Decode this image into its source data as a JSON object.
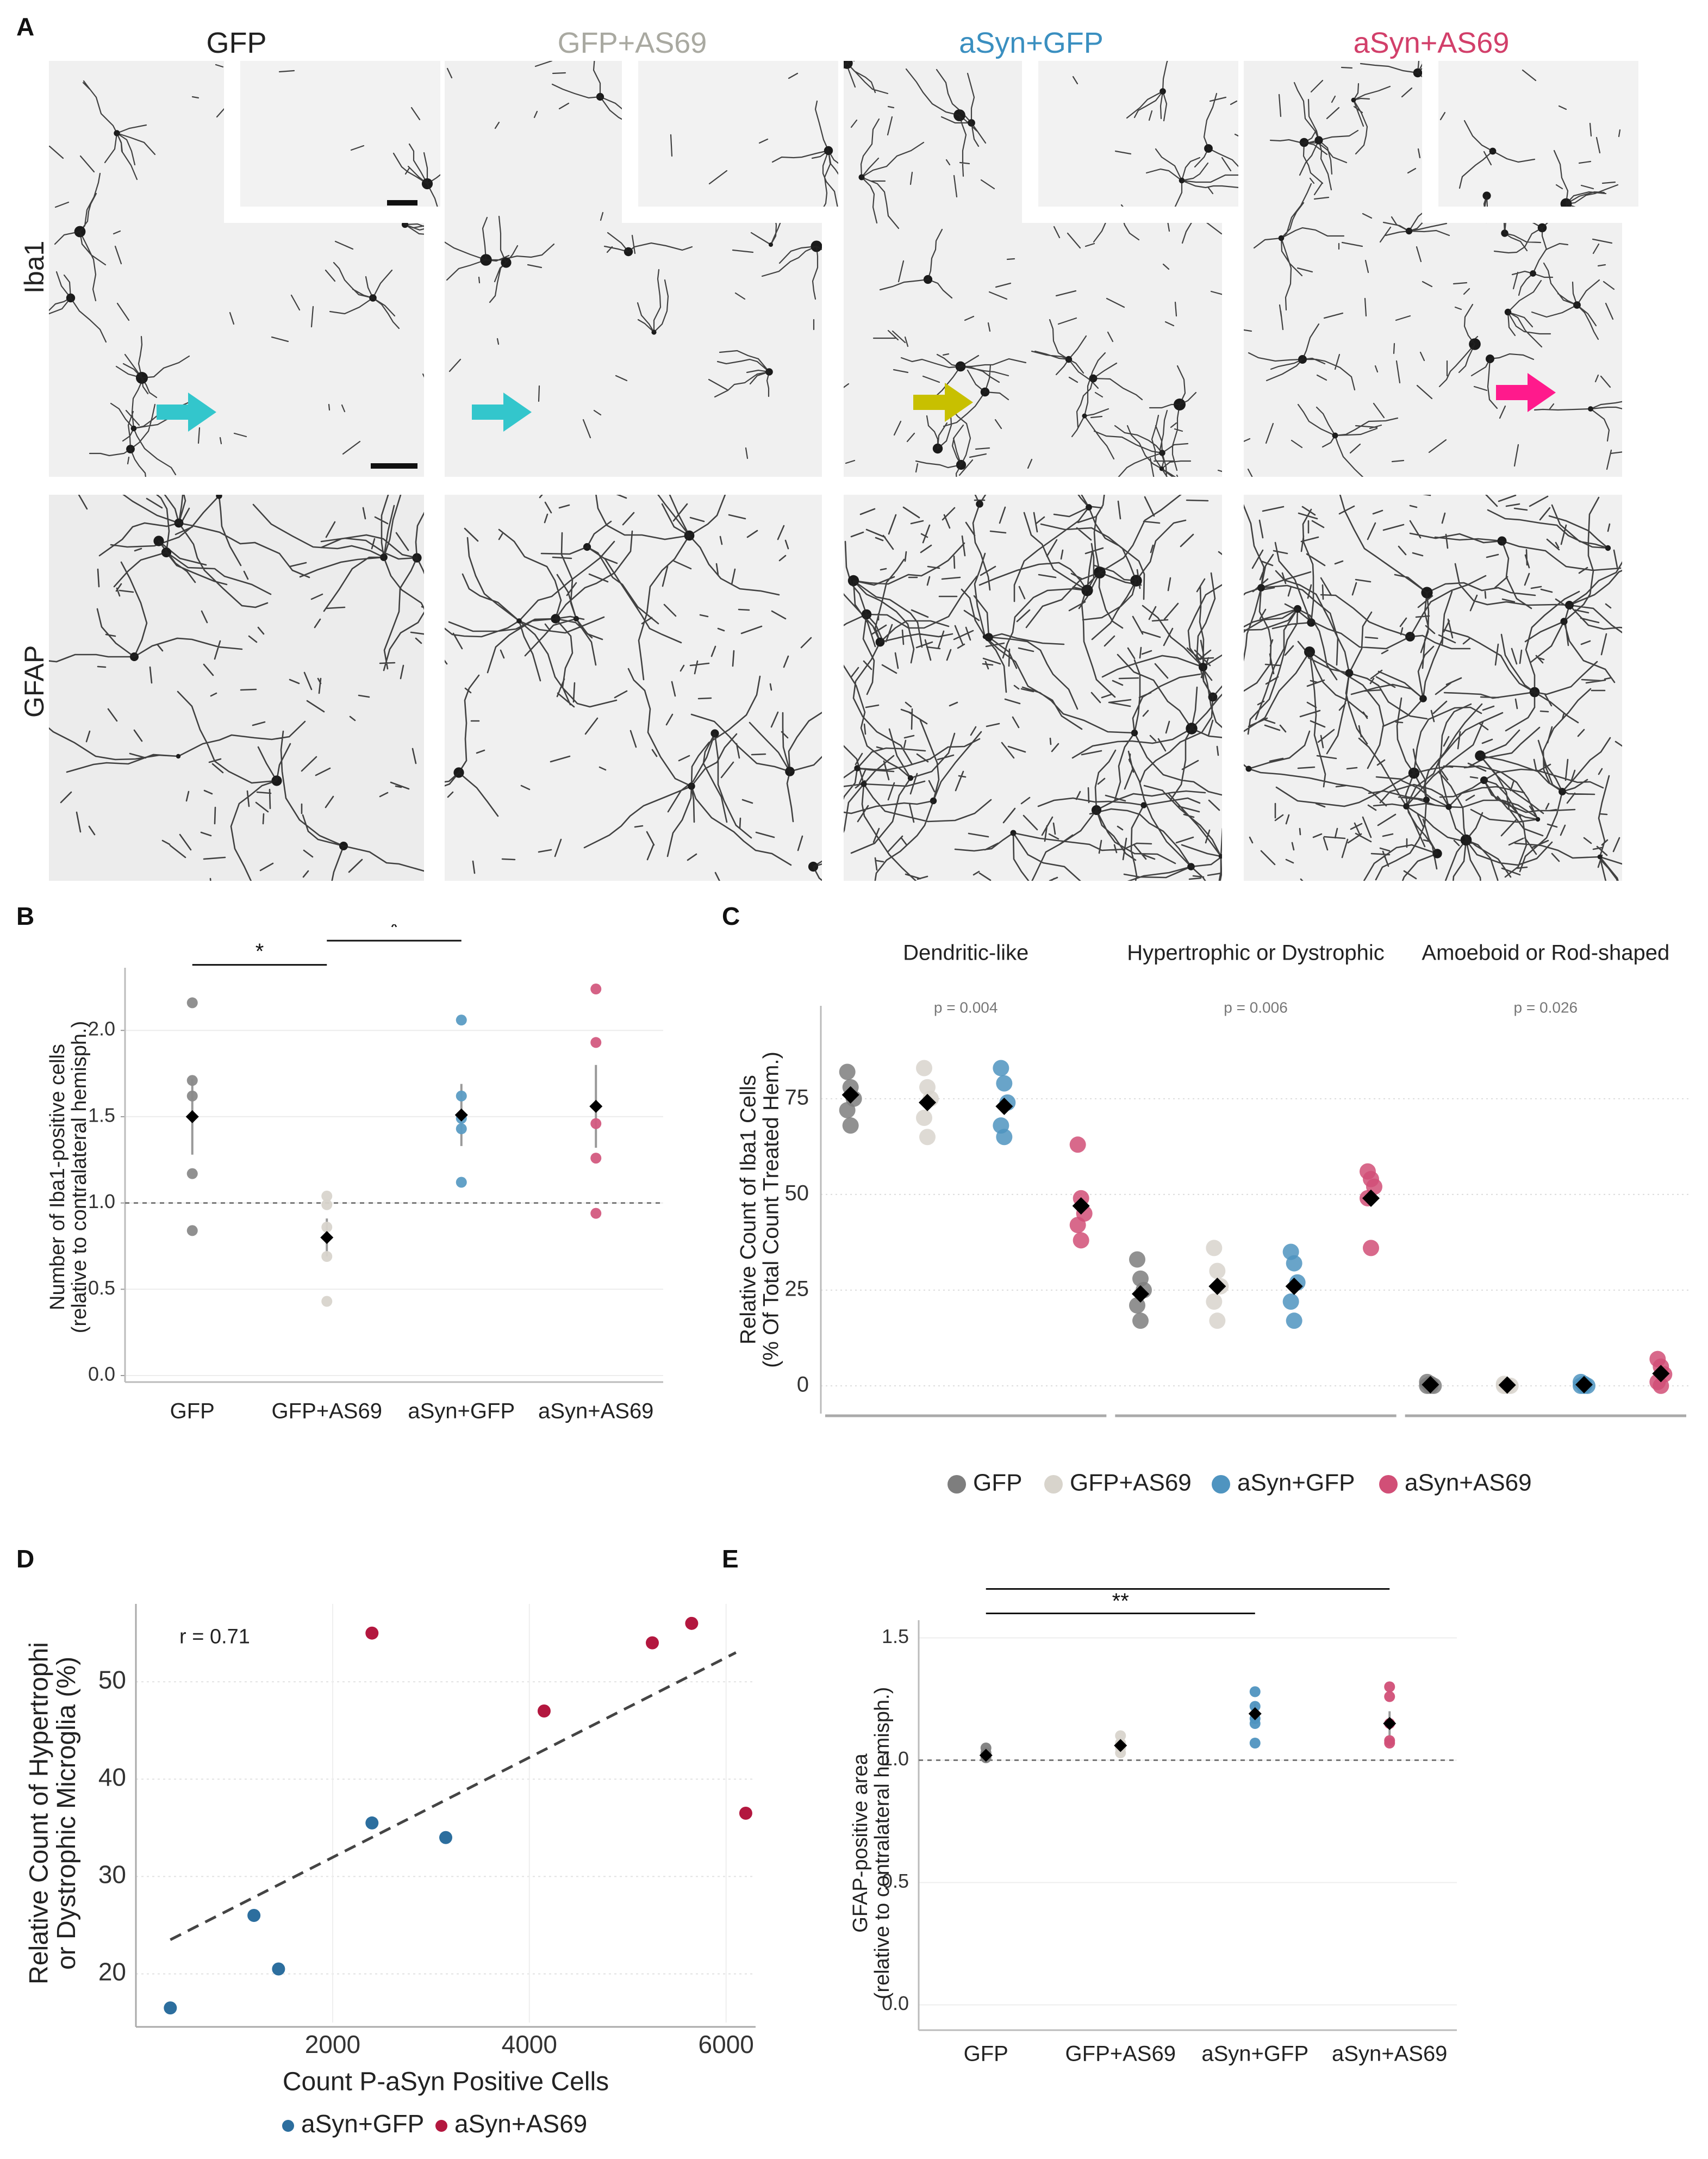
{
  "panel_letters": {
    "a": "A",
    "b": "B",
    "c": "C",
    "d": "D",
    "e": "E"
  },
  "panel_a": {
    "columns": [
      {
        "label": "GFP",
        "color": "#222222"
      },
      {
        "label": "GFP+AS69",
        "color": "#a9a9a1"
      },
      {
        "label": "aSyn+GFP",
        "color": "#3a8fc0"
      },
      {
        "label": "aSyn+AS69",
        "color": "#d23f6a"
      }
    ],
    "rows": [
      {
        "label": "Iba1"
      },
      {
        "label": "GFAP"
      }
    ],
    "arrow_colors": [
      "#33c6cc",
      "#33c6cc",
      "#c8c000",
      "#ff1a8c"
    ],
    "icons": {
      "arrow": "arrow-right-icon"
    }
  },
  "chart_data": [
    {
      "id": "B",
      "type": "scatter",
      "xlabel": "",
      "ylabel": "Number of Iba1-positive cells\n(relative to contralateral hemisph.)",
      "categories": [
        "GFP",
        "GFP+AS69",
        "aSyn+GFP",
        "aSyn+AS69"
      ],
      "ylim": [
        0.0,
        2.3
      ],
      "yticks": [
        "0.0",
        "0.5",
        "1.0",
        "1.5",
        "2.0"
      ],
      "reference_line": 1.0,
      "colors": [
        "#8a8a8a",
        "#d8d4cc",
        "#5b9cc4",
        "#d35a7f"
      ],
      "points": [
        [
          2.16,
          1.71,
          1.62,
          1.17,
          0.84
        ],
        [
          1.04,
          0.99,
          0.86,
          0.69,
          0.43
        ],
        [
          2.06,
          1.62,
          1.49,
          1.43,
          1.12
        ],
        [
          2.24,
          1.93,
          1.46,
          1.26,
          0.94
        ]
      ],
      "means": [
        1.5,
        0.8,
        1.51,
        1.56
      ],
      "errors": [
        0.22,
        0.11,
        0.18,
        0.24
      ],
      "significance": [
        {
          "from": 0,
          "to": 1,
          "label": "*"
        },
        {
          "from": 1,
          "to": 2,
          "label": "*"
        },
        {
          "from": 1,
          "to": 3,
          "label": "*"
        }
      ],
      "grid": true
    },
    {
      "id": "C",
      "type": "scatter",
      "ylabel": "Relative Count of Iba1 Cells\n(% Of Total Count Treated Hem.)",
      "facets": [
        "Dendritic-like",
        "Hypertrophic or Dystrophic",
        "Amoeboid or Rod-shaped"
      ],
      "facet_pvalues": [
        "p = 0.004",
        "p = 0.006",
        "p = 0.026"
      ],
      "series_names": [
        "GFP",
        "GFP+AS69",
        "aSyn+GFP",
        "aSyn+AS69"
      ],
      "colors": [
        "#7e7e7e",
        "#d8d4cc",
        "#4f94c0",
        "#d14f77"
      ],
      "ylim": [
        -3,
        95
      ],
      "yticks": [
        "0",
        "25",
        "50",
        "75"
      ],
      "points": [
        [
          [
            82,
            78,
            75,
            72,
            68
          ],
          [
            83,
            78,
            75,
            70,
            65
          ],
          [
            83,
            79,
            74,
            68,
            65
          ],
          [
            63,
            49,
            45,
            42,
            38
          ]
        ],
        [
          [
            33,
            28,
            25,
            21,
            17
          ],
          [
            36,
            30,
            26,
            22,
            17
          ],
          [
            35,
            32,
            27,
            22,
            17
          ],
          [
            56,
            54,
            52,
            49,
            36
          ]
        ],
        [
          [
            1,
            0.5,
            0,
            0,
            0
          ],
          [
            0.5,
            0,
            0,
            0,
            0
          ],
          [
            1,
            0.5,
            0,
            0,
            0
          ],
          [
            7,
            5,
            3,
            1,
            0
          ]
        ]
      ],
      "means": [
        [
          76,
          74,
          73,
          47
        ],
        [
          24,
          26,
          26,
          49
        ],
        [
          0.3,
          0.2,
          0.3,
          3.2
        ]
      ],
      "legend_position": "bottom",
      "grid": true
    },
    {
      "id": "D",
      "type": "scatter",
      "xlabel": "Count P-aSyn Positive Cells",
      "ylabel": "Relative Count of Hypertrophi\nor Dystrophic Microglia (%)",
      "annotation": "r = 0.71",
      "xlim": [
        0,
        6300
      ],
      "ylim": [
        15,
        58
      ],
      "xticks": [
        "2000",
        "4000",
        "6000"
      ],
      "yticks": [
        "20",
        "30",
        "40",
        "50"
      ],
      "series": [
        {
          "name": "aSyn+GFP",
          "color": "#2c6e9e",
          "x": [
            350,
            1200,
            1450,
            2400,
            3150
          ],
          "y": [
            16.5,
            26,
            20.5,
            35.5,
            34
          ]
        },
        {
          "name": "aSyn+AS69",
          "color": "#b3173f",
          "x": [
            2400,
            4150,
            5250,
            5650,
            6200
          ],
          "y": [
            55,
            47,
            54,
            56,
            36.5
          ]
        }
      ],
      "trend_line": {
        "x": [
          350,
          6100
        ],
        "y": [
          23.5,
          53
        ]
      },
      "legend_position": "bottom",
      "grid": true
    },
    {
      "id": "E",
      "type": "scatter",
      "ylabel": "GFAP-positive area\n(relative to contralateral hemisph.)",
      "categories": [
        "GFP",
        "GFP+AS69",
        "aSyn+GFP",
        "aSyn+AS69"
      ],
      "ylim": [
        -0.05,
        1.55
      ],
      "yticks": [
        "0.0",
        "0.5",
        "1.0",
        "1.5"
      ],
      "reference_line": 1.0,
      "colors": [
        "#7e7e7e",
        "#d8d4cc",
        "#4f94c0",
        "#d14f77"
      ],
      "points": [
        [
          1.05,
          1.03,
          1.02,
          1.01
        ],
        [
          1.1,
          1.07,
          1.05,
          1.03
        ],
        [
          1.28,
          1.22,
          1.17,
          1.15,
          1.07
        ],
        [
          1.3,
          1.26,
          1.15,
          1.08,
          1.07
        ]
      ],
      "means": [
        1.02,
        1.06,
        1.19,
        1.15
      ],
      "errors": [
        0.01,
        0.02,
        0.04,
        0.05
      ],
      "significance": [
        {
          "from": 0,
          "to": 2,
          "label": "**"
        },
        {
          "from": 0,
          "to": 3,
          "label": "*"
        }
      ],
      "grid": true
    }
  ]
}
